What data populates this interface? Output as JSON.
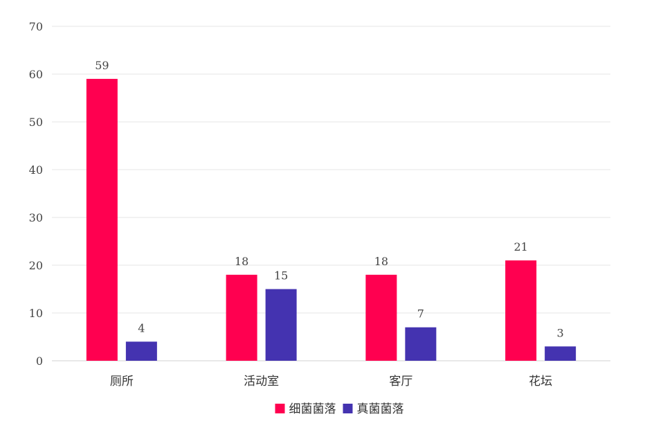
{
  "chart_data": {
    "type": "bar",
    "title": "",
    "xlabel": "",
    "ylabel": "",
    "categories": [
      "厕所",
      "活动室",
      "客厅",
      "花坛"
    ],
    "series": [
      {
        "name": "细菌菌落",
        "color": "#FF0050",
        "values": [
          59,
          18,
          18,
          21
        ]
      },
      {
        "name": "真菌菌落",
        "color": "#4433B0",
        "values": [
          4,
          15,
          7,
          3
        ]
      }
    ],
    "ylim": [
      0,
      70
    ],
    "yticks": [
      0,
      10,
      20,
      30,
      40,
      50,
      60,
      70
    ],
    "grid": true,
    "legend": "bottom-center",
    "data_labels": true
  }
}
